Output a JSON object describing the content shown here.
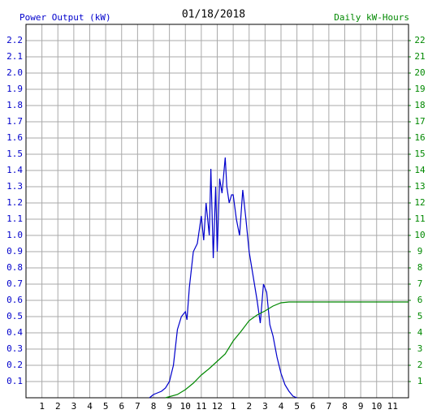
{
  "chart_data": {
    "type": "line",
    "title": "01/18/2018",
    "ylabel": "Power Output (kW)",
    "y2label": "Daily kW-Hours",
    "xlim": [
      0,
      24
    ],
    "ylim": [
      0,
      2.3
    ],
    "y2lim": [
      0,
      23
    ],
    "grid": true,
    "xticks": [
      1,
      2,
      3,
      4,
      5,
      6,
      7,
      8,
      9,
      10,
      11,
      12,
      {
        "value": 13,
        "label": "1"
      },
      {
        "value": 14,
        "label": "2"
      },
      {
        "value": 15,
        "label": "3"
      },
      {
        "value": 16,
        "label": "4"
      },
      {
        "value": 17,
        "label": "5"
      },
      {
        "value": 18,
        "label": "6"
      },
      {
        "value": 19,
        "label": "7"
      },
      {
        "value": 20,
        "label": "8"
      },
      {
        "value": 21,
        "label": "9"
      },
      {
        "value": 22,
        "label": "10"
      },
      {
        "value": 23,
        "label": "11"
      }
    ],
    "yticks": [
      0.1,
      0.2,
      0.3,
      0.4,
      0.5,
      0.6,
      0.7,
      0.8,
      0.9,
      {
        "value": 1,
        "label": "1.0"
      },
      1.1,
      1.2,
      1.3,
      1.4,
      1.5,
      1.6,
      1.7,
      1.8,
      1.9,
      {
        "value": 2,
        "label": "2.0"
      },
      2.1,
      2.2
    ],
    "y2ticks": [
      1,
      2,
      3,
      4,
      5,
      6,
      7,
      8,
      9,
      10,
      11,
      12,
      13,
      14,
      15,
      16,
      17,
      18,
      19,
      20,
      21,
      22
    ],
    "series": [
      {
        "color": "#0000cc",
        "x": [
          7.75,
          8,
          8.25,
          8.5,
          8.75,
          9,
          9.25,
          9.5,
          9.75,
          10,
          10.1,
          10.25,
          10.5,
          10.75,
          11,
          11.15,
          11.3,
          11.5,
          11.6,
          11.75,
          11.9,
          12,
          12.15,
          12.3,
          12.5,
          12.6,
          12.75,
          12.9,
          13,
          13.2,
          13.4,
          13.6,
          13.8,
          14,
          14.25,
          14.5,
          14.7,
          14.9,
          15.1,
          15.3,
          15.5,
          15.75,
          16,
          16.25,
          16.5,
          16.75,
          17
        ],
        "values": [
          0,
          0.02,
          0.03,
          0.04,
          0.06,
          0.1,
          0.2,
          0.42,
          0.5,
          0.53,
          0.48,
          0.68,
          0.9,
          0.95,
          1.12,
          0.97,
          1.2,
          1.0,
          1.41,
          0.86,
          1.3,
          0.9,
          1.35,
          1.26,
          1.48,
          1.3,
          1.2,
          1.25,
          1.25,
          1.1,
          1.0,
          1.28,
          1.1,
          0.9,
          0.75,
          0.6,
          0.46,
          0.7,
          0.65,
          0.45,
          0.38,
          0.25,
          0.15,
          0.08,
          0.04,
          0.01,
          0
        ]
      },
      {
        "color": "#008800",
        "axis": "y2",
        "x": [
          8.75,
          9.5,
          10,
          10.5,
          11,
          11.5,
          12,
          12.5,
          13,
          13.5,
          14,
          14.5,
          15,
          15.5,
          16,
          16.5,
          24
        ],
        "values": [
          0,
          0.2,
          0.5,
          0.9,
          1.4,
          1.8,
          2.25,
          2.7,
          3.5,
          4.1,
          4.75,
          5.1,
          5.35,
          5.65,
          5.85,
          5.9,
          5.9
        ]
      }
    ]
  }
}
